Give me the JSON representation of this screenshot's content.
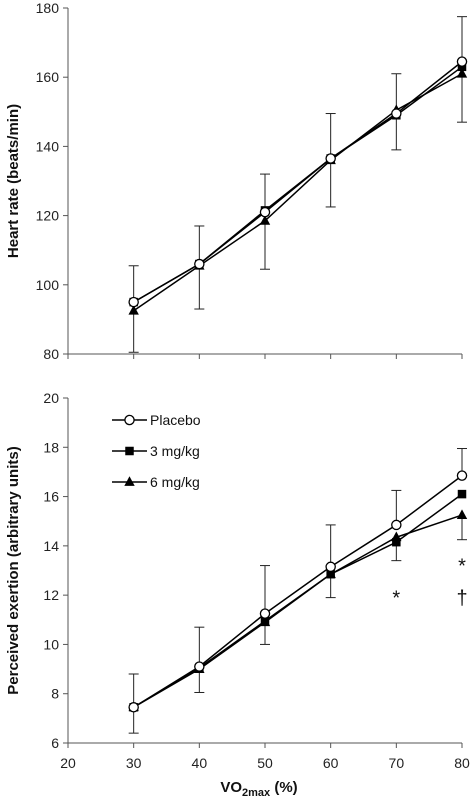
{
  "chart_data": [
    {
      "type": "line",
      "title": "",
      "ylabel": "Heart rate (beats/min)",
      "xlabel": "",
      "xlim": [
        20,
        80
      ],
      "ylim": [
        80,
        180
      ],
      "yticks": [
        80,
        100,
        120,
        140,
        160,
        180
      ],
      "x": [
        30,
        40,
        50,
        60,
        70,
        80
      ],
      "grid": false,
      "series": [
        {
          "name": "Placebo",
          "marker": "open-circle",
          "color": "#000000",
          "values": [
            95,
            106,
            121,
            136.5,
            149.5,
            164.5
          ],
          "error": [
            10.5,
            11,
            11,
            13,
            11.5,
            13
          ]
        },
        {
          "name": "3 mg/kg",
          "marker": "filled-square",
          "color": "#000000",
          "values": [
            95,
            106,
            121.5,
            136.5,
            149,
            163
          ],
          "error": [
            null,
            null,
            null,
            null,
            null,
            null
          ]
        },
        {
          "name": "6 mg/kg",
          "marker": "filled-triangle",
          "color": "#000000",
          "values": [
            92.5,
            105.5,
            118.5,
            136,
            150.5,
            161
          ],
          "error": [
            12,
            12.5,
            14,
            13.5,
            11.5,
            14
          ]
        }
      ]
    },
    {
      "type": "line",
      "title": "",
      "ylabel": "Perceived exertion (arbitrary units)",
      "xlabel": "VO",
      "xlabel_subscript": "2max",
      "xlabel_suffix": " (%)",
      "xlim": [
        20,
        80
      ],
      "ylim": [
        6,
        20
      ],
      "yticks": [
        6,
        8,
        10,
        12,
        14,
        16,
        18,
        20
      ],
      "xticks": [
        20,
        30,
        40,
        50,
        60,
        70,
        80
      ],
      "x": [
        30,
        40,
        50,
        60,
        70,
        80
      ],
      "grid": false,
      "legend": "top-left",
      "series": [
        {
          "name": "Placebo",
          "marker": "open-circle",
          "color": "#000000",
          "values": [
            7.45,
            9.1,
            11.25,
            13.15,
            14.85,
            16.85
          ],
          "error": [
            1.35,
            1.6,
            1.95,
            1.7,
            1.4,
            1.1
          ]
        },
        {
          "name": "3 mg/kg",
          "marker": "filled-square",
          "color": "#000000",
          "values": [
            7.45,
            9.05,
            10.95,
            12.85,
            14.15,
            16.1
          ],
          "error": [
            null,
            null,
            null,
            null,
            null,
            null
          ]
        },
        {
          "name": "6 mg/kg",
          "marker": "filled-triangle",
          "color": "#000000",
          "values": [
            7.45,
            9.0,
            10.9,
            12.85,
            14.35,
            15.25
          ],
          "error": [
            1.05,
            0.95,
            0.9,
            0.95,
            0.95,
            1.0
          ]
        }
      ],
      "annotations": [
        {
          "text": "*",
          "x": 70,
          "y": 11.9
        },
        {
          "text": "*",
          "x": 80,
          "y": 13.2
        },
        {
          "text": "†",
          "x": 80,
          "y": 11.9
        }
      ]
    }
  ]
}
